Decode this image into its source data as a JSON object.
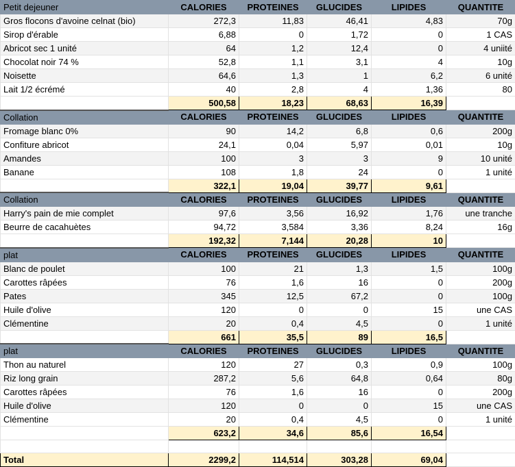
{
  "sections": [
    {
      "title": "Petit dejeuner",
      "columns": [
        "CALORIES",
        "PROTEINES",
        "GLUCIDES",
        "LIPIDES",
        "QUANTITE"
      ],
      "rows": [
        [
          "Gros flocons d'avoine celnat (bio)",
          "272,3",
          "11,83",
          "46,41",
          "4,83",
          "70g"
        ],
        [
          "Sirop d'érable",
          "6,88",
          "0",
          "1,72",
          "0",
          "1 CAS"
        ],
        [
          "Abricot sec 1 unité",
          "64",
          "1,2",
          "12,4",
          "0",
          "4 uniité"
        ],
        [
          "Chocolat noir 74 %",
          "52,8",
          "1,1",
          "3,1",
          "4",
          "10g"
        ],
        [
          "Noisette",
          "64,6",
          "1,3",
          "1",
          "6,2",
          "6 unité"
        ],
        [
          "Lait 1/2 écrémé",
          "40",
          "2,8",
          "4",
          "1,36",
          "80"
        ]
      ],
      "totals": [
        "500,58",
        "18,23",
        "68,63",
        "16,39"
      ]
    },
    {
      "title": "Collation",
      "columns": [
        "CALORIES",
        "PROTEINES",
        "GLUCIDES",
        "LIPIDES",
        "QUANTITE"
      ],
      "rows": [
        [
          "Fromage blanc 0%",
          "90",
          "14,2",
          "6,8",
          "0,6",
          "200g"
        ],
        [
          "Confiture abricot",
          "24,1",
          "0,04",
          "5,97",
          "0,01",
          "10g"
        ],
        [
          "Amandes",
          "100",
          "3",
          "3",
          "9",
          "10 unité"
        ],
        [
          "Banane",
          "108",
          "1,8",
          "24",
          "0",
          "1 unité"
        ]
      ],
      "totals": [
        "322,1",
        "19,04",
        "39,77",
        "9,61"
      ]
    },
    {
      "title": "Collation",
      "columns": [
        "CALORIES",
        "PROTEINES",
        "GLUCIDES",
        "LIPIDES",
        "QUANTITE"
      ],
      "rows": [
        [
          "Harry's pain de mie  complet",
          "97,6",
          "3,56",
          "16,92",
          "1,76",
          "une tranche"
        ],
        [
          "Beurre de cacahuètes",
          "94,72",
          "3,584",
          "3,36",
          "8,24",
          "16g"
        ]
      ],
      "totals": [
        "192,32",
        "7,144",
        "20,28",
        "10"
      ]
    },
    {
      "title": "plat",
      "columns": [
        "CALORIES",
        "PROTEINES",
        "GLUCIDES",
        "LIPIDES",
        "QUANTITE"
      ],
      "rows": [
        [
          "Blanc de poulet",
          "100",
          "21",
          "1,3",
          "1,5",
          "100g"
        ],
        [
          "Carottes râpées",
          "76",
          "1,6",
          "16",
          "0",
          "200g"
        ],
        [
          "Pates",
          "345",
          "12,5",
          "67,2",
          "0",
          "100g"
        ],
        [
          "Huile d'olive",
          "120",
          "0",
          "0",
          "15",
          "une CAS"
        ],
        [
          "Clémentine",
          "20",
          "0,4",
          "4,5",
          "0",
          "1 unité"
        ]
      ],
      "totals": [
        "661",
        "35,5",
        "89",
        "16,5"
      ]
    },
    {
      "title": "plat",
      "columns": [
        "CALORIES",
        "PROTEINES",
        "GLUCIDES",
        "LIPIDES",
        "QUANTITE"
      ],
      "rows": [
        [
          "Thon au naturel",
          "120",
          "27",
          "0,3",
          "0,9",
          "100g"
        ],
        [
          "Riz long grain",
          "287,2",
          "5,6",
          "64,8",
          "0,64",
          "80g"
        ],
        [
          "Carottes râpées",
          "76",
          "1,6",
          "16",
          "0",
          "200g"
        ],
        [
          "Huile d'olive",
          "120",
          "0",
          "0",
          "15",
          "une CAS"
        ],
        [
          "Clémentine",
          "20",
          "0,4",
          "4,5",
          "0",
          "1 unité"
        ]
      ],
      "totals": [
        "623,2",
        "34,6",
        "85,6",
        "16,54"
      ]
    }
  ],
  "grand_total": {
    "label": "Total",
    "values": [
      "2299,2",
      "114,514",
      "303,28",
      "69,04"
    ]
  }
}
